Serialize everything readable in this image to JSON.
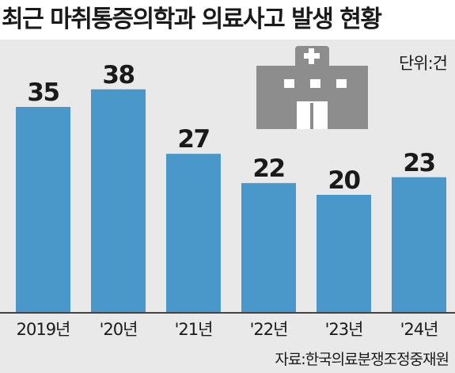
{
  "title": "최근 마취통증의학과 의료사고 발생 현황",
  "unit": "단위:건",
  "source": "자료:한국의료분쟁조정중재원",
  "icon": "hospital-icon",
  "colors": {
    "bar": "#4a97c9",
    "background": "#e9e9e9",
    "icon": "#8d8d8d",
    "axis": "#444444"
  },
  "chart_data": {
    "type": "bar",
    "title": "최근 마취통증의학과 의료사고 발생 현황",
    "categories": [
      "2019년",
      "'20년",
      "'21년",
      "'22년",
      "'23년",
      "'24년"
    ],
    "values": [
      35,
      38,
      27,
      22,
      20,
      23
    ],
    "ylabel": "",
    "xlabel": "",
    "unit": "건",
    "ylim": [
      0,
      45
    ],
    "grid": false,
    "data_labels": true
  }
}
